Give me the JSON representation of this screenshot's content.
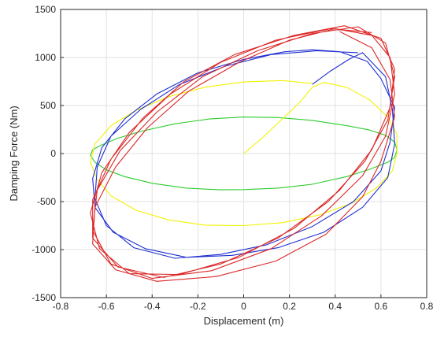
{
  "chart_data": {
    "type": "line",
    "title": "",
    "xlabel": "Displacement (m)",
    "ylabel": "Damping Force (Nm)",
    "xlim": [
      -0.8,
      0.8
    ],
    "ylim": [
      -1500,
      1500
    ],
    "xticks": [
      -0.8,
      -0.6,
      -0.4,
      -0.2,
      0,
      0.2,
      0.4,
      0.6,
      0.8
    ],
    "yticks": [
      -1500,
      -1000,
      -500,
      0,
      500,
      1000,
      1500
    ],
    "xtick_labels": [
      "-0.8",
      "-0.6",
      "-0.4",
      "-0.2",
      "0",
      "0.2",
      "0.4",
      "0.6",
      "0.8"
    ],
    "ytick_labels": [
      "-1500",
      "-1000",
      "-500",
      "0",
      "500",
      "1000",
      "1500"
    ],
    "grid": true,
    "legend": "none",
    "series": [
      {
        "color": "#2ecc2e",
        "points": [
          [
            0.0,
            380
          ],
          [
            0.15,
            375
          ],
          [
            0.3,
            345
          ],
          [
            0.45,
            290
          ],
          [
            0.55,
            245
          ],
          [
            0.62,
            190
          ],
          [
            0.66,
            120
          ],
          [
            0.67,
            40
          ],
          [
            0.66,
            -40
          ],
          [
            0.63,
            -90
          ],
          [
            0.55,
            -165
          ],
          [
            0.45,
            -240
          ],
          [
            0.3,
            -320
          ],
          [
            0.15,
            -360
          ],
          [
            0.0,
            -375
          ],
          [
            -0.1,
            -378
          ],
          [
            -0.25,
            -360
          ],
          [
            -0.4,
            -310
          ],
          [
            -0.52,
            -240
          ],
          [
            -0.6,
            -170
          ],
          [
            -0.65,
            -90
          ],
          [
            -0.67,
            -20
          ],
          [
            -0.66,
            40
          ],
          [
            -0.62,
            90
          ],
          [
            -0.55,
            160
          ],
          [
            -0.45,
            230
          ],
          [
            -0.3,
            310
          ],
          [
            -0.15,
            360
          ],
          [
            0.0,
            380
          ]
        ]
      },
      {
        "color": "#f2f200",
        "points": [
          [
            0.0,
            0
          ],
          [
            0.08,
            160
          ],
          [
            0.16,
            340
          ],
          [
            0.24,
            520
          ],
          [
            0.3,
            690
          ],
          [
            0.35,
            740
          ],
          [
            0.45,
            690
          ],
          [
            0.55,
            560
          ],
          [
            0.63,
            380
          ],
          [
            0.67,
            200
          ],
          [
            0.67,
            0
          ],
          [
            0.65,
            -180
          ],
          [
            0.58,
            -360
          ],
          [
            0.47,
            -520
          ],
          [
            0.33,
            -640
          ],
          [
            0.17,
            -720
          ],
          [
            0.0,
            -750
          ],
          [
            -0.17,
            -745
          ],
          [
            -0.33,
            -690
          ],
          [
            -0.47,
            -590
          ],
          [
            -0.58,
            -440
          ],
          [
            -0.64,
            -270
          ],
          [
            -0.67,
            -90
          ],
          [
            -0.65,
            100
          ],
          [
            -0.58,
            290
          ],
          [
            -0.47,
            450
          ],
          [
            -0.33,
            590
          ],
          [
            -0.17,
            690
          ],
          [
            0.0,
            745
          ],
          [
            0.17,
            760
          ],
          [
            0.3,
            730
          ]
        ]
      },
      {
        "color": "#1f2fd0",
        "points": [
          [
            0.3,
            720
          ],
          [
            0.38,
            860
          ],
          [
            0.46,
            980
          ],
          [
            0.52,
            1050
          ],
          [
            0.62,
            800
          ],
          [
            0.65,
            460
          ],
          [
            0.66,
            100
          ],
          [
            0.63,
            -250
          ],
          [
            0.52,
            -560
          ],
          [
            0.35,
            -820
          ],
          [
            0.15,
            -980
          ],
          [
            -0.05,
            -1060
          ],
          [
            -0.25,
            -1080
          ],
          [
            -0.43,
            -990
          ],
          [
            -0.57,
            -820
          ],
          [
            -0.65,
            -560
          ],
          [
            -0.66,
            -260
          ],
          [
            -0.62,
            60
          ],
          [
            -0.52,
            360
          ],
          [
            -0.38,
            620
          ],
          [
            -0.2,
            840
          ],
          [
            0.0,
            980
          ],
          [
            0.18,
            1060
          ],
          [
            0.3,
            1080
          ],
          [
            0.42,
            1060
          ],
          [
            0.54,
            960
          ],
          [
            0.6,
            780
          ],
          [
            0.66,
            480
          ],
          [
            0.64,
            120
          ],
          [
            0.6,
            -180
          ],
          [
            0.48,
            -500
          ],
          [
            0.3,
            -760
          ],
          [
            0.1,
            -950
          ],
          [
            -0.1,
            -1050
          ],
          [
            -0.3,
            -1090
          ],
          [
            -0.48,
            -980
          ],
          [
            -0.6,
            -750
          ],
          [
            -0.65,
            -470
          ],
          [
            -0.64,
            -140
          ],
          [
            -0.58,
            180
          ],
          [
            -0.45,
            460
          ],
          [
            -0.28,
            720
          ],
          [
            -0.08,
            910
          ],
          [
            0.12,
            1030
          ],
          [
            0.32,
            1070
          ],
          [
            0.5,
            1050
          ]
        ]
      },
      {
        "color": "#dc2828",
        "points": [
          [
            0.42,
            1270
          ],
          [
            0.56,
            1100
          ],
          [
            0.64,
            770
          ],
          [
            0.66,
            380
          ],
          [
            0.6,
            -80
          ],
          [
            0.52,
            -450
          ],
          [
            0.36,
            -840
          ],
          [
            0.14,
            -1120
          ],
          [
            -0.12,
            -1280
          ],
          [
            -0.38,
            -1330
          ],
          [
            -0.56,
            -1210
          ],
          [
            -0.66,
            -940
          ],
          [
            -0.65,
            -560
          ],
          [
            -0.56,
            -140
          ],
          [
            -0.42,
            270
          ],
          [
            -0.24,
            650
          ],
          [
            -0.02,
            950
          ],
          [
            0.2,
            1180
          ],
          [
            0.4,
            1300
          ],
          [
            0.56,
            1230
          ],
          [
            0.64,
            1000
          ],
          [
            0.66,
            620
          ],
          [
            0.62,
            180
          ],
          [
            0.52,
            -230
          ],
          [
            0.34,
            -650
          ],
          [
            0.12,
            -990
          ],
          [
            -0.14,
            -1220
          ],
          [
            -0.4,
            -1300
          ],
          [
            -0.58,
            -1150
          ],
          [
            -0.66,
            -800
          ],
          [
            -0.64,
            -380
          ],
          [
            -0.54,
            30
          ],
          [
            -0.38,
            430
          ],
          [
            -0.18,
            800
          ],
          [
            0.06,
            1070
          ],
          [
            0.3,
            1250
          ],
          [
            0.5,
            1320
          ],
          [
            0.62,
            1150
          ],
          [
            0.66,
            800
          ],
          [
            0.63,
            350
          ],
          [
            0.53,
            -80
          ],
          [
            0.37,
            -500
          ],
          [
            0.15,
            -880
          ],
          [
            -0.1,
            -1150
          ],
          [
            -0.35,
            -1290
          ],
          [
            -0.55,
            -1180
          ],
          [
            -0.66,
            -880
          ],
          [
            -0.66,
            -480
          ],
          [
            -0.58,
            -60
          ],
          [
            -0.44,
            370
          ],
          [
            -0.26,
            750
          ],
          [
            -0.04,
            1030
          ],
          [
            0.22,
            1230
          ],
          [
            0.44,
            1330
          ],
          [
            0.6,
            1200
          ],
          [
            0.66,
            880
          ],
          [
            0.64,
            480
          ],
          [
            0.56,
            40
          ],
          [
            0.42,
            -380
          ],
          [
            0.22,
            -780
          ],
          [
            -0.02,
            -1080
          ],
          [
            -0.28,
            -1260
          ],
          [
            -0.5,
            -1250
          ],
          [
            -0.63,
            -990
          ],
          [
            -0.67,
            -620
          ],
          [
            -0.62,
            -200
          ],
          [
            -0.5,
            220
          ],
          [
            -0.32,
            620
          ],
          [
            -0.1,
            950
          ],
          [
            0.14,
            1180
          ],
          [
            0.38,
            1300
          ],
          [
            0.56,
            1260
          ]
        ]
      }
    ]
  }
}
